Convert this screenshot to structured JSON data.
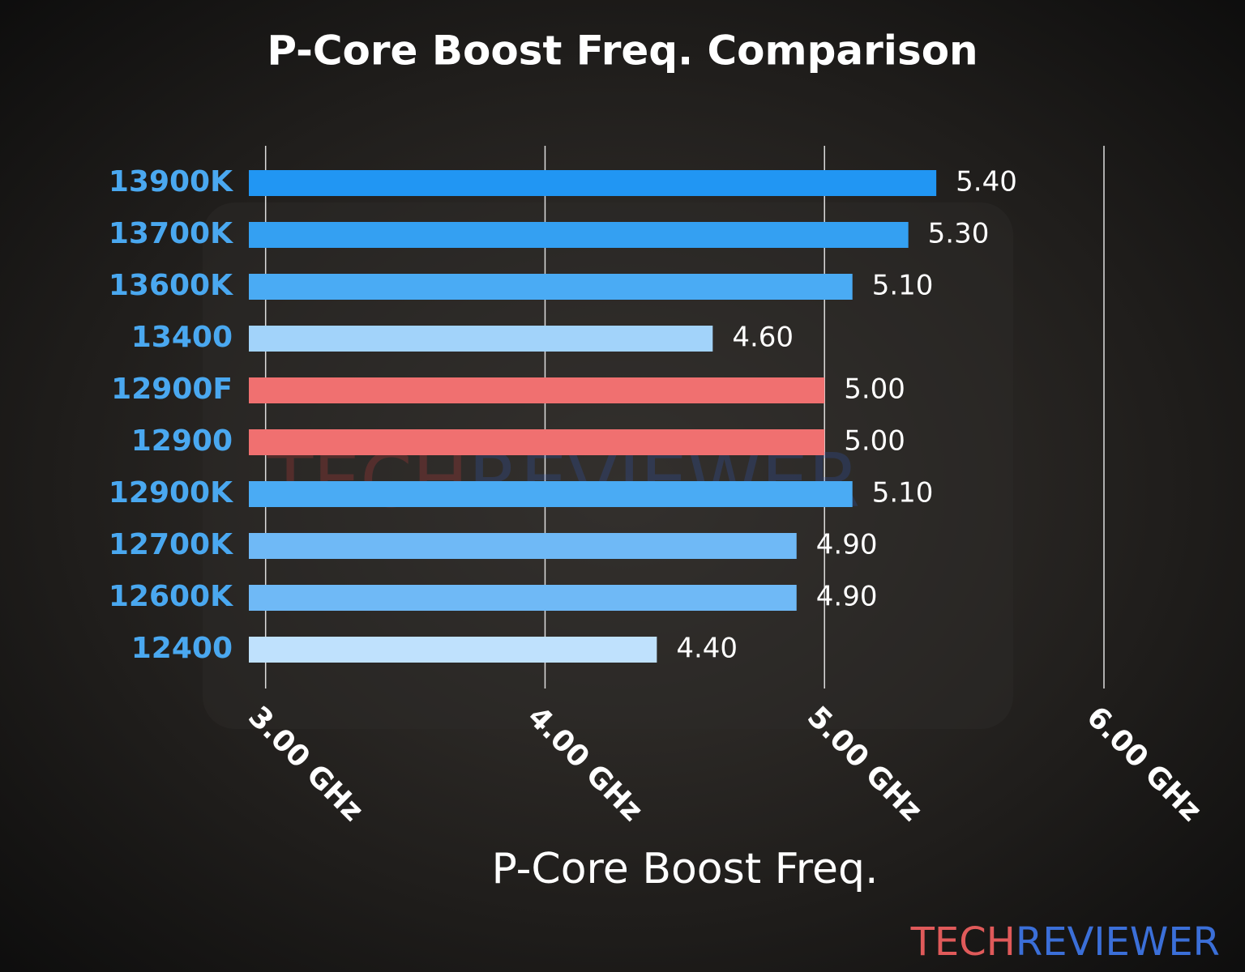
{
  "chart_data": {
    "type": "bar",
    "orientation": "horizontal",
    "title": "P-Core Boost Freq. Comparison",
    "xlabel": "P-Core Boost Freq.",
    "categories": [
      "13900K",
      "13700K",
      "13600K",
      "13400",
      "12900F",
      "12900",
      "12900K",
      "12700K",
      "12600K",
      "12400"
    ],
    "values": [
      5.4,
      5.3,
      5.1,
      4.6,
      5.0,
      5.0,
      5.1,
      4.9,
      4.9,
      4.4
    ],
    "value_labels": [
      "5.40",
      "5.30",
      "5.10",
      "4.60",
      "5.00",
      "5.00",
      "5.10",
      "4.90",
      "4.90",
      "4.40"
    ],
    "colors": [
      "#2196f3",
      "#34a0f2",
      "#4aabf4",
      "#a2d3fa",
      "#f07070",
      "#f07070",
      "#4aabf4",
      "#6fb9f6",
      "#6fb9f6",
      "#bfe1fd"
    ],
    "xlim": [
      2.94,
      6.0
    ],
    "xticks": [
      {
        "value": 3,
        "label": "3.00 GHz"
      },
      {
        "value": 4,
        "label": "4.00 GHz"
      },
      {
        "value": 5,
        "label": "5.00 GHz"
      },
      {
        "value": 6,
        "label": "6.00 GHz"
      }
    ],
    "grid": true,
    "watermark": {
      "left": "TECH",
      "right": "REVIEWER"
    }
  }
}
